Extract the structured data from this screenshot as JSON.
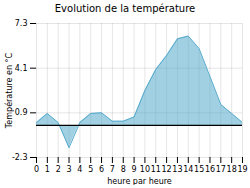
{
  "chart_data": {
    "type": "area",
    "title": "Evolution de la température",
    "xlabel": "heure par heure",
    "ylabel": "Température en °C",
    "x": [
      0,
      1,
      2,
      3,
      4,
      5,
      6,
      7,
      8,
      9,
      10,
      11,
      12,
      13,
      14,
      15,
      16,
      17,
      18,
      19
    ],
    "values": [
      0.2,
      0.85,
      0.2,
      -1.6,
      0.2,
      0.85,
      0.9,
      0.3,
      0.3,
      0.6,
      2.5,
      4.0,
      5.0,
      6.2,
      6.4,
      5.5,
      3.5,
      1.5,
      0.85,
      0.2
    ],
    "color": "#55aacc",
    "xlim": [
      0,
      19
    ],
    "xticks": [
      0,
      1,
      2,
      3,
      4,
      5,
      6,
      7,
      8,
      9,
      10,
      11,
      12,
      13,
      14,
      15,
      16,
      17,
      18,
      19
    ],
    "ylim": [
      -2.3,
      7.3
    ],
    "yticks": [
      -2.3,
      0.9,
      4.1,
      7.3
    ],
    "grid": true
  }
}
